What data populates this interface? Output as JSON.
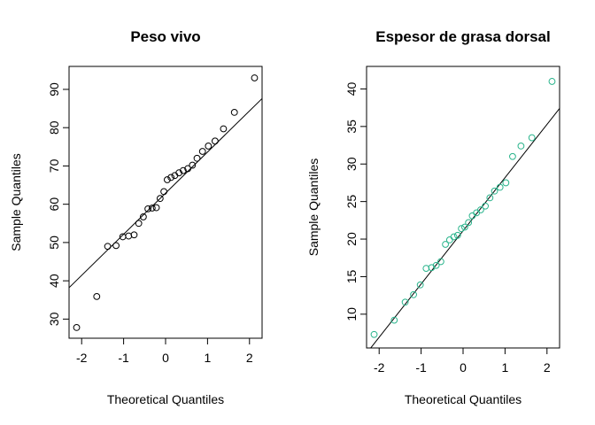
{
  "chart_data": [
    {
      "type": "scatter",
      "title": "Peso vivo",
      "xlabel": "Theoretical Quantiles",
      "ylabel": "Sample Quantiles",
      "xlim": [
        -2.3,
        2.3
      ],
      "ylim": [
        25,
        96
      ],
      "xticks": [
        -2,
        -1,
        0,
        1,
        2
      ],
      "yticks": [
        30,
        40,
        50,
        60,
        70,
        80,
        90
      ],
      "point_color": "#000000",
      "series": [
        {
          "x": [
            -2.12,
            -1.64,
            -1.38,
            -1.18,
            -1.02,
            -0.88,
            -0.75,
            -0.64,
            -0.53,
            -0.42,
            -0.32,
            -0.22,
            -0.13,
            -0.04,
            0.04,
            0.13,
            0.22,
            0.32,
            0.42,
            0.53,
            0.64,
            0.75,
            0.88,
            1.02,
            1.18,
            1.38,
            1.64,
            2.12
          ],
          "y": [
            27.8,
            35.9,
            49.0,
            49.2,
            51.5,
            51.7,
            52.0,
            55.0,
            56.7,
            58.8,
            59.0,
            59.1,
            61.5,
            63.3,
            66.4,
            67.0,
            67.5,
            68.2,
            68.8,
            69.3,
            70.2,
            72.0,
            73.8,
            75.2,
            76.5,
            79.7,
            84.0,
            93.0
          ]
        }
      ],
      "reference_line": {
        "x": [
          -2.3,
          2.3
        ],
        "y": [
          38.2,
          87.6
        ]
      }
    },
    {
      "type": "scatter",
      "title": "Espesor de grasa dorsal",
      "xlabel": "Theoretical Quantiles",
      "ylabel": "Sample Quantiles",
      "xlim": [
        -2.3,
        2.3
      ],
      "ylim": [
        5.5,
        43
      ],
      "xticks": [
        -2,
        -1,
        0,
        1,
        2
      ],
      "yticks": [
        10,
        15,
        20,
        25,
        30,
        35,
        40
      ],
      "point_color": "#2ab48c",
      "series": [
        {
          "x": [
            -2.12,
            -1.64,
            -1.38,
            -1.18,
            -1.02,
            -0.88,
            -0.75,
            -0.64,
            -0.53,
            -0.42,
            -0.32,
            -0.22,
            -0.13,
            -0.04,
            0.04,
            0.13,
            0.22,
            0.32,
            0.42,
            0.53,
            0.64,
            0.75,
            0.88,
            1.02,
            1.18,
            1.38,
            1.64,
            2.12
          ],
          "y": [
            7.3,
            9.2,
            11.6,
            12.6,
            13.9,
            16.1,
            16.2,
            16.5,
            17.0,
            19.3,
            19.9,
            20.3,
            20.5,
            21.4,
            21.6,
            22.2,
            23.1,
            23.5,
            23.9,
            24.4,
            25.5,
            26.4,
            26.9,
            27.5,
            31.0,
            32.4,
            33.5,
            41.0
          ]
        }
      ],
      "reference_line": {
        "x": [
          -2.3,
          2.3
        ],
        "y": [
          4.8,
          37.4
        ]
      }
    }
  ]
}
